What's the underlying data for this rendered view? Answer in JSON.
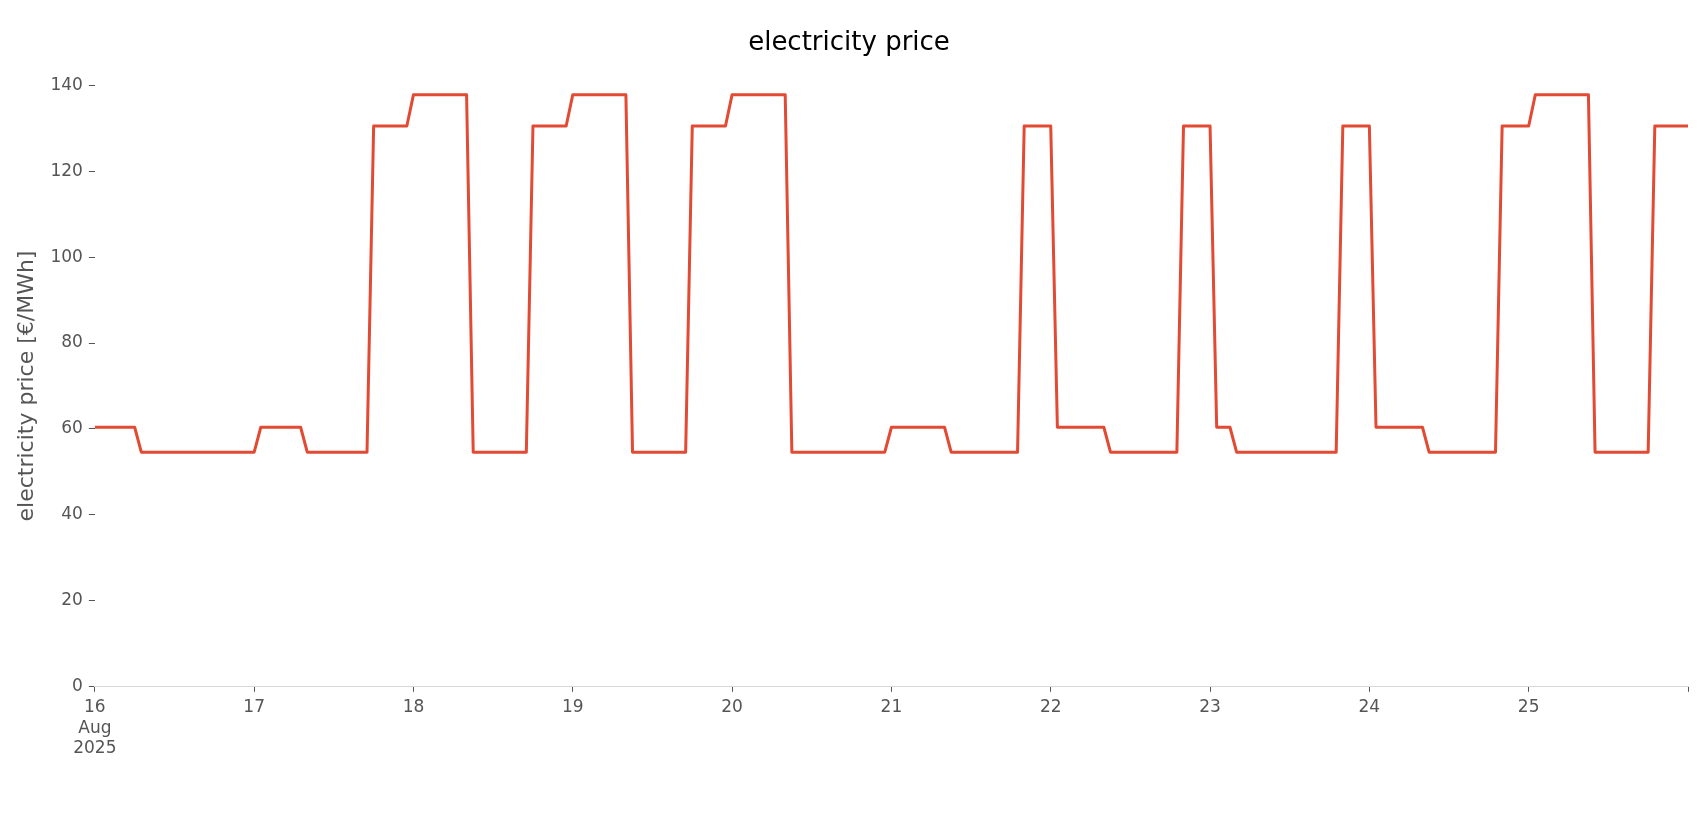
{
  "chart_data": {
    "type": "line",
    "title": "electricity price",
    "ylabel": "electricity price [€/MWh]",
    "x": [
      "2025-08-16T00:00",
      "2025-08-16T06:00",
      "2025-08-16T07:00",
      "2025-08-17T00:00",
      "2025-08-17T01:00",
      "2025-08-17T07:00",
      "2025-08-17T08:00",
      "2025-08-17T17:00",
      "2025-08-17T18:00",
      "2025-08-17T23:00",
      "2025-08-18T00:00",
      "2025-08-18T08:00",
      "2025-08-18T09:00",
      "2025-08-18T17:00",
      "2025-08-18T18:00",
      "2025-08-18T23:00",
      "2025-08-19T00:00",
      "2025-08-19T08:00",
      "2025-08-19T09:00",
      "2025-08-19T17:00",
      "2025-08-19T18:00",
      "2025-08-19T23:00",
      "2025-08-20T00:00",
      "2025-08-20T08:00",
      "2025-08-20T09:00",
      "2025-08-20T23:00",
      "2025-08-21T00:00",
      "2025-08-21T08:00",
      "2025-08-21T09:00",
      "2025-08-21T19:00",
      "2025-08-21T20:00",
      "2025-08-22T00:00",
      "2025-08-22T01:00",
      "2025-08-22T08:00",
      "2025-08-22T09:00",
      "2025-08-22T19:00",
      "2025-08-22T20:00",
      "2025-08-23T00:00",
      "2025-08-23T01:00",
      "2025-08-23T03:00",
      "2025-08-23T04:00",
      "2025-08-23T19:00",
      "2025-08-23T20:00",
      "2025-08-24T00:00",
      "2025-08-24T01:00",
      "2025-08-24T08:00",
      "2025-08-24T09:00",
      "2025-08-24T19:00",
      "2025-08-24T20:00",
      "2025-08-25T00:00",
      "2025-08-25T01:00",
      "2025-08-25T09:00",
      "2025-08-25T10:00",
      "2025-08-25T18:00",
      "2025-08-25T19:00",
      "2025-08-26T00:00"
    ],
    "series": [
      {
        "color": "#e24a33",
        "values": [
          60.4,
          60.4,
          54.6,
          54.6,
          60.4,
          60.4,
          54.6,
          54.6,
          130.5,
          130.5,
          137.8,
          137.8,
          54.6,
          54.6,
          130.5,
          130.5,
          137.8,
          137.8,
          54.6,
          54.6,
          130.5,
          130.5,
          137.8,
          137.8,
          54.6,
          54.6,
          60.4,
          60.4,
          54.6,
          54.6,
          130.5,
          130.5,
          60.4,
          60.4,
          54.6,
          54.6,
          130.5,
          130.5,
          60.4,
          60.4,
          54.6,
          54.6,
          130.5,
          130.5,
          60.4,
          60.4,
          54.6,
          54.6,
          130.5,
          130.5,
          137.8,
          137.8,
          54.6,
          54.6,
          130.5,
          130.5
        ]
      }
    ],
    "xticks": [
      {
        "value": "2025-08-16",
        "label": "16\nAug\n2025"
      },
      {
        "value": "2025-08-17",
        "label": "17"
      },
      {
        "value": "2025-08-18",
        "label": "18"
      },
      {
        "value": "2025-08-19",
        "label": "19"
      },
      {
        "value": "2025-08-20",
        "label": "20"
      },
      {
        "value": "2025-08-21",
        "label": "21"
      },
      {
        "value": "2025-08-22",
        "label": "22"
      },
      {
        "value": "2025-08-23",
        "label": "23"
      },
      {
        "value": "2025-08-24",
        "label": "24"
      },
      {
        "value": "2025-08-25",
        "label": "25"
      },
      {
        "value": "2025-08-26",
        "label": null
      }
    ],
    "xlim": [
      "2025-08-16T00:00",
      "2025-08-26T00:00"
    ],
    "ylim": [
      0,
      140
    ],
    "yticks": [
      0,
      20,
      40,
      60,
      80,
      100,
      120,
      140
    ],
    "grid": false,
    "legend": false,
    "marker": "none",
    "line_style": "solid"
  }
}
